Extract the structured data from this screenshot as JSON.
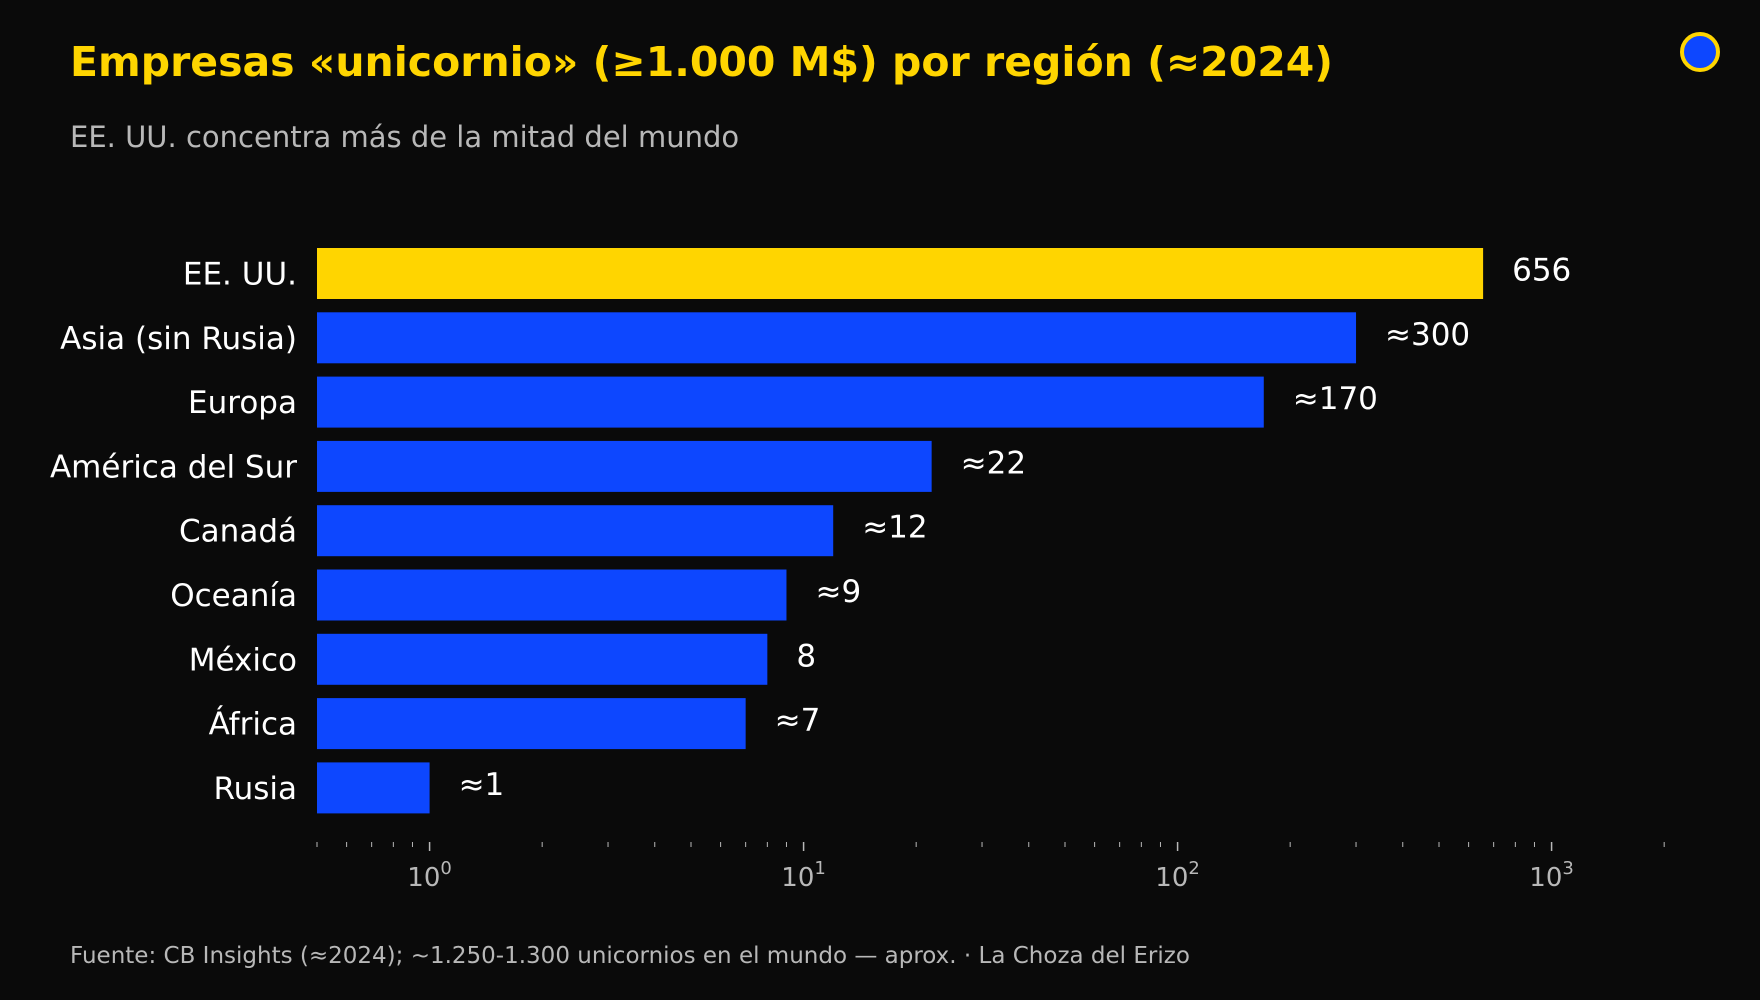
{
  "header": {
    "title": "Empresas «unicornio» (≥1.000 M$) por región (≈2024)",
    "subtitle": "EE. UU. concentra más de la mitad del mundo"
  },
  "footer": {
    "source": "Fuente: CB Insights (≈2024); ~1.250-1.300 unicornios en el mundo — aprox.  ·  La Choza del Erizo"
  },
  "colors": {
    "background": "#0a0a0a",
    "highlight": "#FFD500",
    "bar": "#0D47FF",
    "text": "#ffffff",
    "muted": "#b8b8b8"
  },
  "chart_data": {
    "type": "bar",
    "orientation": "horizontal",
    "x_scale": "log",
    "xlim": [
      0.5,
      2000
    ],
    "categories": [
      "EE. UU.",
      "Asia (sin Rusia)",
      "Europa",
      "América del Sur",
      "Canadá",
      "Oceanía",
      "México",
      "África",
      "Rusia"
    ],
    "values": [
      656,
      300,
      170,
      22,
      12,
      9,
      8,
      7,
      1
    ],
    "value_labels": [
      "656",
      "≈300",
      "≈170",
      "≈22",
      "≈12",
      "≈9",
      "8",
      "≈7",
      "≈1"
    ],
    "highlight_index": 0,
    "ticks": [
      {
        "value": 1,
        "base": "10",
        "exp": "0"
      },
      {
        "value": 10,
        "base": "10",
        "exp": "1"
      },
      {
        "value": 100,
        "base": "10",
        "exp": "2"
      },
      {
        "value": 1000,
        "base": "10",
        "exp": "3"
      }
    ],
    "grid": false,
    "legend": "none"
  }
}
